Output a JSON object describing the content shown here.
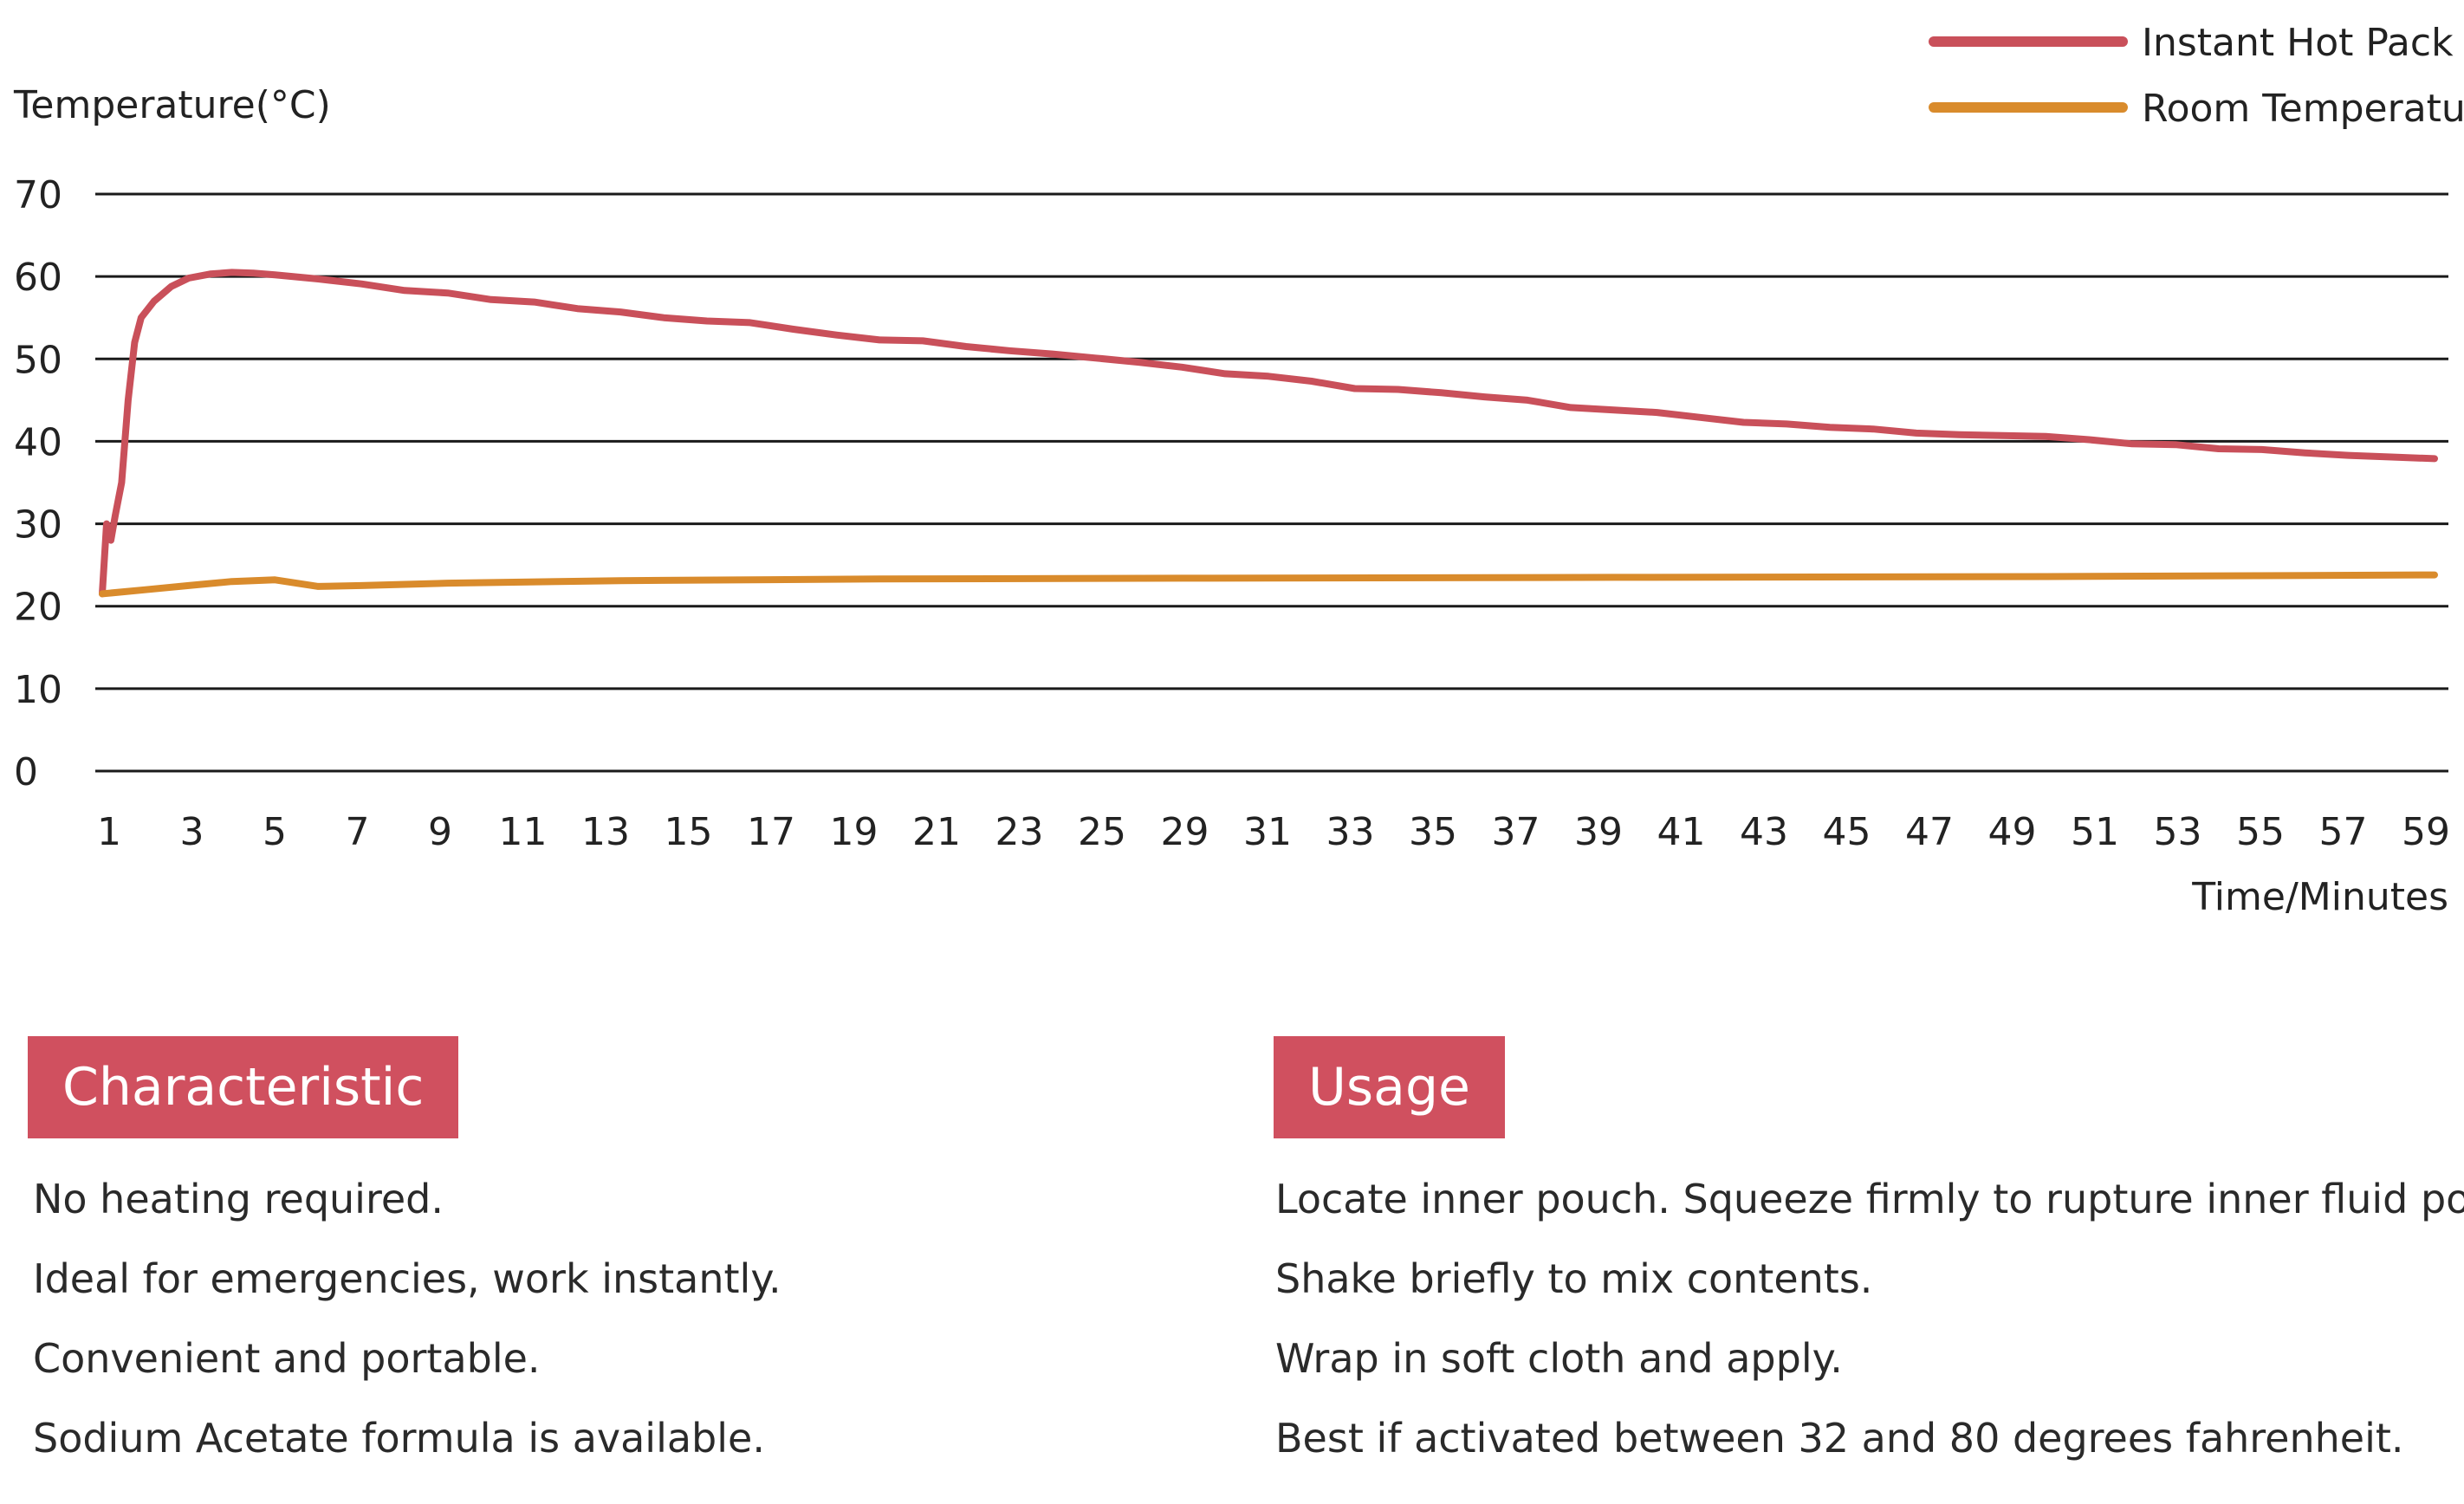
{
  "chart_data": {
    "type": "line",
    "ylabel": "Temperature(°C)",
    "xlabel": "Time/Minutes",
    "ylim": [
      0,
      70
    ],
    "yticks": [
      0,
      10,
      20,
      30,
      40,
      50,
      60,
      70
    ],
    "x_tick_labels": [
      "1",
      "3",
      "5",
      "7",
      "9",
      "11",
      "13",
      "15",
      "17",
      "19",
      "21",
      "23",
      "25",
      "29",
      "31",
      "33",
      "35",
      "37",
      "39",
      "41",
      "43",
      "45",
      "47",
      "49",
      "51",
      "53",
      "55",
      "57",
      "59"
    ],
    "grid": "horizontal",
    "legend_position": "top-right",
    "series": [
      {
        "name": "Instant Hot Pack",
        "color": "#c9505a",
        "points": [
          [
            0,
            21.5
          ],
          [
            0.1,
            30
          ],
          [
            0.2,
            28
          ],
          [
            0.3,
            31
          ],
          [
            0.45,
            35
          ],
          [
            0.6,
            45
          ],
          [
            0.75,
            52
          ],
          [
            0.9,
            55
          ],
          [
            1.2,
            57
          ],
          [
            1.6,
            58.8
          ],
          [
            2,
            59.8
          ],
          [
            2.5,
            60.3
          ],
          [
            3,
            60.5
          ],
          [
            3.5,
            60.4
          ],
          [
            4,
            60.2
          ],
          [
            5,
            59.7
          ],
          [
            6,
            59.1
          ],
          [
            7,
            58.3
          ],
          [
            8,
            58
          ],
          [
            9,
            57.2
          ],
          [
            10,
            56.9
          ],
          [
            11,
            56.1
          ],
          [
            12,
            55.7
          ],
          [
            13,
            55
          ],
          [
            14,
            54.6
          ],
          [
            15,
            54.4
          ],
          [
            16,
            53.6
          ],
          [
            17,
            52.9
          ],
          [
            18,
            52.3
          ],
          [
            19,
            52.2
          ],
          [
            20,
            51.5
          ],
          [
            21,
            51
          ],
          [
            22,
            50.6
          ],
          [
            23,
            50.1
          ],
          [
            24,
            49.6
          ],
          [
            25,
            49
          ],
          [
            26,
            48.2
          ],
          [
            27,
            47.9
          ],
          [
            28,
            47.3
          ],
          [
            29,
            46.4
          ],
          [
            30,
            46.3
          ],
          [
            31,
            45.9
          ],
          [
            32,
            45.4
          ],
          [
            33,
            45
          ],
          [
            34,
            44.1
          ],
          [
            35,
            43.8
          ],
          [
            36,
            43.5
          ],
          [
            37,
            42.9
          ],
          [
            38,
            42.3
          ],
          [
            39,
            42.1
          ],
          [
            40,
            41.7
          ],
          [
            41,
            41.5
          ],
          [
            42,
            41
          ],
          [
            43,
            40.8
          ],
          [
            44,
            40.7
          ],
          [
            45,
            40.6
          ],
          [
            46,
            40.2
          ],
          [
            47,
            39.7
          ],
          [
            48,
            39.6
          ],
          [
            49,
            39.1
          ],
          [
            50,
            39
          ],
          [
            51,
            38.6
          ],
          [
            52,
            38.3
          ],
          [
            53,
            38.1
          ],
          [
            54,
            37.9
          ]
        ]
      },
      {
        "name": "Room Temperature",
        "color": "#d98b2c",
        "points": [
          [
            0,
            21.5
          ],
          [
            1,
            22
          ],
          [
            2,
            22.5
          ],
          [
            3,
            23
          ],
          [
            4,
            23.2
          ],
          [
            5,
            22.4
          ],
          [
            6,
            22.5
          ],
          [
            8,
            22.8
          ],
          [
            12,
            23.1
          ],
          [
            18,
            23.3
          ],
          [
            25,
            23.4
          ],
          [
            35,
            23.5
          ],
          [
            45,
            23.6
          ],
          [
            54,
            23.8
          ]
        ]
      }
    ]
  },
  "characteristic": {
    "title": "Characteristic",
    "items": [
      "No heating required.",
      "Ideal for emergencies, work instantly.",
      "Convenient and portable.",
      "Sodium Acetate formula is available."
    ]
  },
  "usage": {
    "title": "Usage",
    "items": [
      "Locate inner pouch. Squeeze firmly to rupture inner fluid pouch.",
      "Shake briefly to mix contents.",
      "Wrap in soft cloth and apply.",
      "Best if activated between 32 and 80 degrees fahrenheit."
    ]
  }
}
